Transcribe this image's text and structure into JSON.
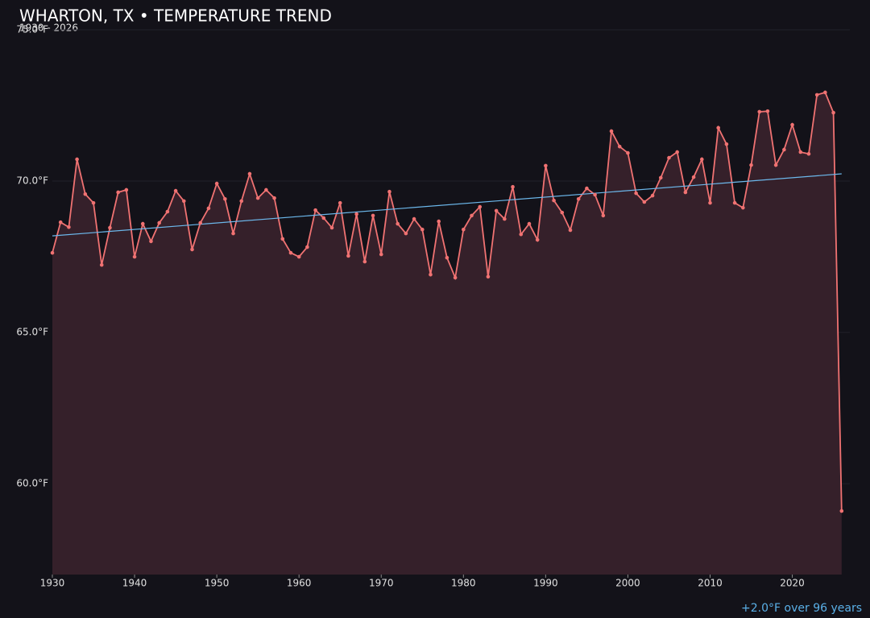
{
  "chart_data": {
    "type": "line",
    "title": "WHARTON, TX • TEMPERATURE TREND",
    "subtitle": "1930 - 2026",
    "annotation": "+2.0°F over 96 years",
    "x": [
      1930,
      1931,
      1932,
      1933,
      1934,
      1935,
      1936,
      1937,
      1938,
      1939,
      1940,
      1941,
      1942,
      1943,
      1944,
      1945,
      1946,
      1947,
      1948,
      1949,
      1950,
      1951,
      1952,
      1953,
      1954,
      1955,
      1956,
      1957,
      1958,
      1959,
      1960,
      1961,
      1962,
      1963,
      1964,
      1965,
      1966,
      1967,
      1968,
      1969,
      1970,
      1971,
      1972,
      1973,
      1974,
      1975,
      1976,
      1977,
      1978,
      1979,
      1980,
      1981,
      1982,
      1983,
      1984,
      1985,
      1986,
      1987,
      1988,
      1989,
      1990,
      1991,
      1992,
      1993,
      1994,
      1995,
      1996,
      1997,
      1998,
      1999,
      2000,
      2001,
      2002,
      2003,
      2004,
      2005,
      2006,
      2007,
      2008,
      2009,
      2010,
      2011,
      2012,
      2013,
      2014,
      2015,
      2016,
      2017,
      2018,
      2019,
      2020,
      2021,
      2022,
      2023,
      2024,
      2025,
      2026
    ],
    "values": [
      67.63,
      68.64,
      68.48,
      70.72,
      69.57,
      69.28,
      67.23,
      68.46,
      69.63,
      69.71,
      67.5,
      68.59,
      68.01,
      68.62,
      68.99,
      69.68,
      69.34,
      67.74,
      68.62,
      69.1,
      69.92,
      69.41,
      68.27,
      69.34,
      70.24,
      69.44,
      69.71,
      69.44,
      68.09,
      67.63,
      67.5,
      67.82,
      69.04,
      68.78,
      68.46,
      69.28,
      67.53,
      68.91,
      67.34,
      68.86,
      67.58,
      69.65,
      68.59,
      68.27,
      68.75,
      68.4,
      66.91,
      68.67,
      67.47,
      66.81,
      68.4,
      68.86,
      69.15,
      66.84,
      69.02,
      68.75,
      69.81,
      68.24,
      68.59,
      68.06,
      70.51,
      69.36,
      68.96,
      68.38,
      69.41,
      69.76,
      69.55,
      68.86,
      71.65,
      71.14,
      70.93,
      69.6,
      69.31,
      69.52,
      70.11,
      70.77,
      70.96,
      69.63,
      70.13,
      70.72,
      69.28,
      71.76,
      71.22,
      69.28,
      69.12,
      70.53,
      72.29,
      72.31,
      70.53,
      71.04,
      71.86,
      70.96,
      70.9,
      72.85,
      72.93,
      72.26,
      59.1
    ],
    "color": "#f07272",
    "fill_color": "#35202a",
    "trend": {
      "x": [
        1930,
        2026
      ],
      "values": [
        68.19,
        70.24
      ],
      "color": "#6cb8ec"
    },
    "xlim": [
      1930,
      2027
    ],
    "ylim": [
      57,
      75
    ],
    "xticks": [
      1930,
      1940,
      1950,
      1960,
      1970,
      1980,
      1990,
      2000,
      2010,
      2020
    ],
    "yticks": [
      {
        "value": 60,
        "label": "60.0°F"
      },
      {
        "value": 65,
        "label": "65.0°F"
      },
      {
        "value": 70,
        "label": "70.0°F"
      },
      {
        "value": 75,
        "label": "75.0°F"
      }
    ],
    "grid": true
  }
}
